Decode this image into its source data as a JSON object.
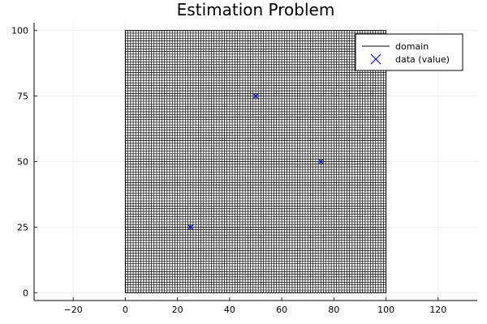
{
  "chart_data": {
    "type": "scatter",
    "title": "Estimation Problem",
    "xlabel": "",
    "ylabel": "",
    "xlim": [
      -35,
      135
    ],
    "ylim": [
      -3,
      103
    ],
    "x_ticks": [
      -20,
      0,
      20,
      40,
      60,
      80,
      100,
      120
    ],
    "y_ticks": [
      0,
      25,
      50,
      75,
      100
    ],
    "grid": true,
    "legend_position": "top-right",
    "domain": {
      "name": "domain",
      "x_range": [
        0,
        100
      ],
      "y_range": [
        0,
        100
      ],
      "cells_x": 100,
      "cells_y": 100,
      "color": "#000000"
    },
    "series": [
      {
        "name": "data (value)",
        "marker": "x",
        "color": "#0000ff",
        "x": [
          25,
          50,
          75
        ],
        "y": [
          25,
          75,
          50
        ]
      }
    ]
  }
}
